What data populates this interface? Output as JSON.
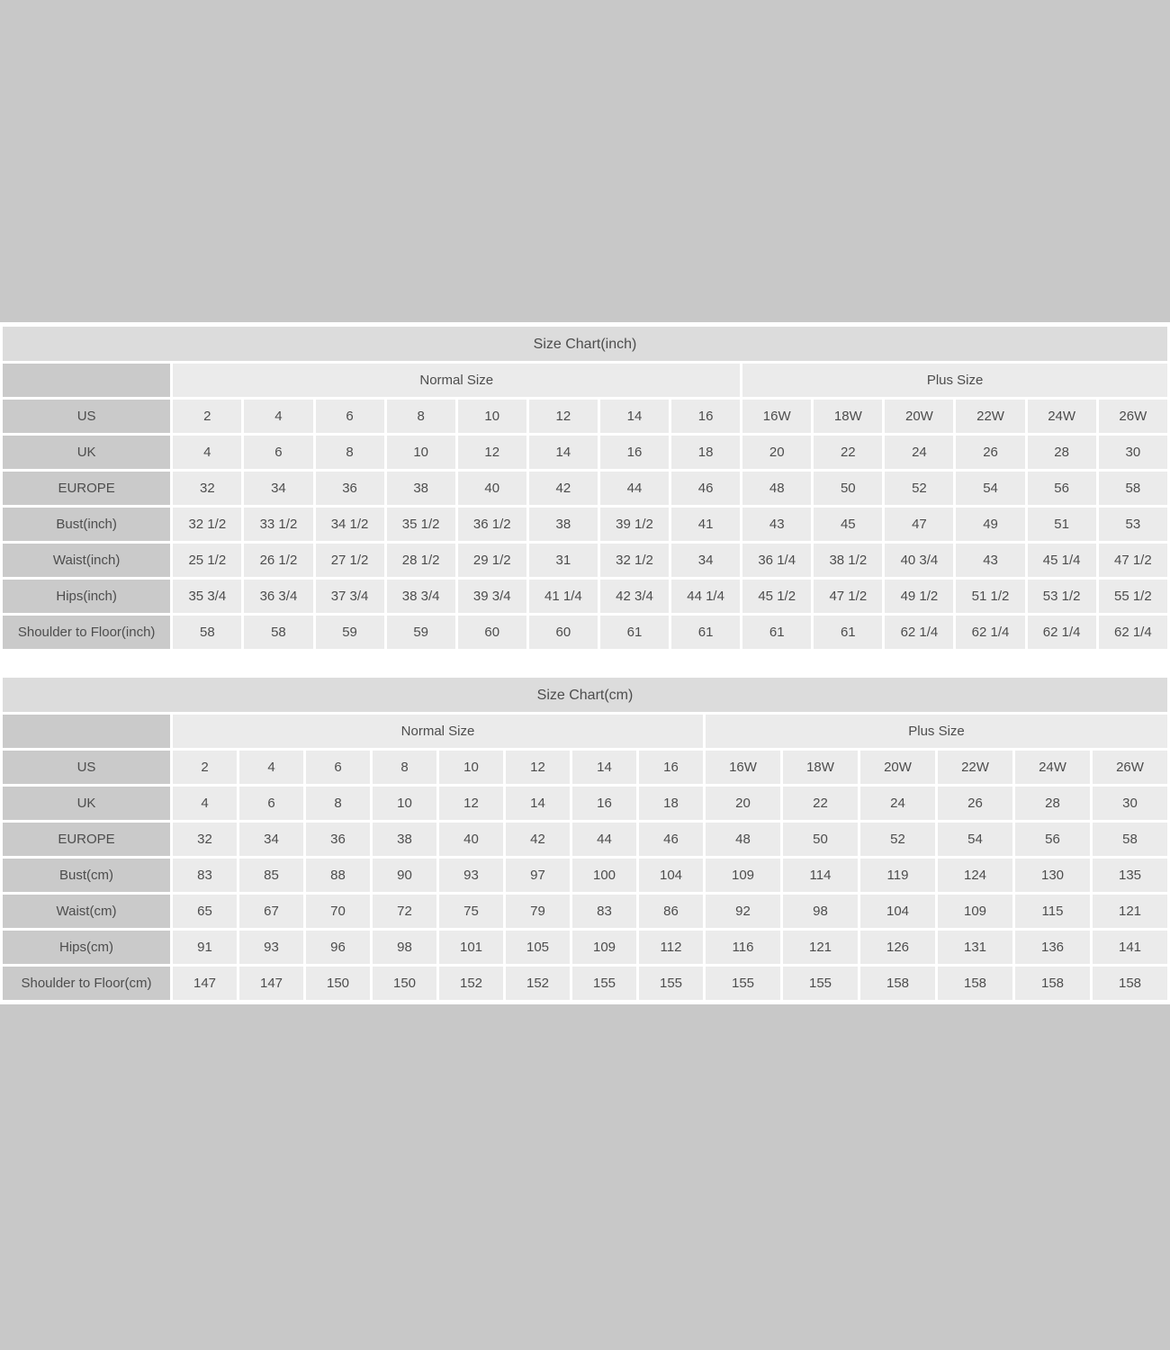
{
  "colors": {
    "page_background": "#c8c8c8",
    "title_bar": "#dcdcdc",
    "label_cell": "#cacaca",
    "data_cell": "#ebebeb",
    "grid_lines": "#ffffff",
    "text": "#4d4d4d"
  },
  "chart_data": [
    {
      "type": "table",
      "title": "Size Chart(inch)",
      "group_headers": [
        {
          "label": "Normal Size",
          "span": 8
        },
        {
          "label": "Plus Size",
          "span": 6
        }
      ],
      "rows": [
        {
          "label": "US",
          "values": [
            "2",
            "4",
            "6",
            "8",
            "10",
            "12",
            "14",
            "16",
            "16W",
            "18W",
            "20W",
            "22W",
            "24W",
            "26W"
          ]
        },
        {
          "label": "UK",
          "values": [
            "4",
            "6",
            "8",
            "10",
            "12",
            "14",
            "16",
            "18",
            "20",
            "22",
            "24",
            "26",
            "28",
            "30"
          ]
        },
        {
          "label": "EUROPE",
          "values": [
            "32",
            "34",
            "36",
            "38",
            "40",
            "42",
            "44",
            "46",
            "48",
            "50",
            "52",
            "54",
            "56",
            "58"
          ]
        },
        {
          "label": "Bust(inch)",
          "values": [
            "32 1/2",
            "33 1/2",
            "34 1/2",
            "35 1/2",
            "36 1/2",
            "38",
            "39 1/2",
            "41",
            "43",
            "45",
            "47",
            "49",
            "51",
            "53"
          ]
        },
        {
          "label": "Waist(inch)",
          "values": [
            "25 1/2",
            "26 1/2",
            "27 1/2",
            "28 1/2",
            "29 1/2",
            "31",
            "32 1/2",
            "34",
            "36 1/4",
            "38 1/2",
            "40 3/4",
            "43",
            "45 1/4",
            "47 1/2"
          ]
        },
        {
          "label": "Hips(inch)",
          "values": [
            "35 3/4",
            "36 3/4",
            "37 3/4",
            "38 3/4",
            "39 3/4",
            "41 1/4",
            "42 3/4",
            "44 1/4",
            "45 1/2",
            "47 1/2",
            "49 1/2",
            "51 1/2",
            "53 1/2",
            "55 1/2"
          ]
        },
        {
          "label": "Shoulder to Floor(inch)",
          "values": [
            "58",
            "58",
            "59",
            "59",
            "60",
            "60",
            "61",
            "61",
            "61",
            "61",
            "62 1/4",
            "62 1/4",
            "62 1/4",
            "62 1/4"
          ]
        }
      ]
    },
    {
      "type": "table",
      "title": "Size Chart(cm)",
      "group_headers": [
        {
          "label": "Normal Size",
          "span": 8
        },
        {
          "label": "Plus Size",
          "span": 6
        }
      ],
      "rows": [
        {
          "label": "US",
          "values": [
            "2",
            "4",
            "6",
            "8",
            "10",
            "12",
            "14",
            "16",
            "16W",
            "18W",
            "20W",
            "22W",
            "24W",
            "26W"
          ]
        },
        {
          "label": "UK",
          "values": [
            "4",
            "6",
            "8",
            "10",
            "12",
            "14",
            "16",
            "18",
            "20",
            "22",
            "24",
            "26",
            "28",
            "30"
          ]
        },
        {
          "label": "EUROPE",
          "values": [
            "32",
            "34",
            "36",
            "38",
            "40",
            "42",
            "44",
            "46",
            "48",
            "50",
            "52",
            "54",
            "56",
            "58"
          ]
        },
        {
          "label": "Bust(cm)",
          "values": [
            "83",
            "85",
            "88",
            "90",
            "93",
            "97",
            "100",
            "104",
            "109",
            "114",
            "119",
            "124",
            "130",
            "135"
          ]
        },
        {
          "label": "Waist(cm)",
          "values": [
            "65",
            "67",
            "70",
            "72",
            "75",
            "79",
            "83",
            "86",
            "92",
            "98",
            "104",
            "109",
            "115",
            "121"
          ]
        },
        {
          "label": "Hips(cm)",
          "values": [
            "91",
            "93",
            "96",
            "98",
            "101",
            "105",
            "109",
            "112",
            "116",
            "121",
            "126",
            "131",
            "136",
            "141"
          ]
        },
        {
          "label": "Shoulder to Floor(cm)",
          "values": [
            "147",
            "147",
            "150",
            "150",
            "152",
            "152",
            "155",
            "155",
            "155",
            "155",
            "158",
            "158",
            "158",
            "158"
          ]
        }
      ]
    }
  ]
}
